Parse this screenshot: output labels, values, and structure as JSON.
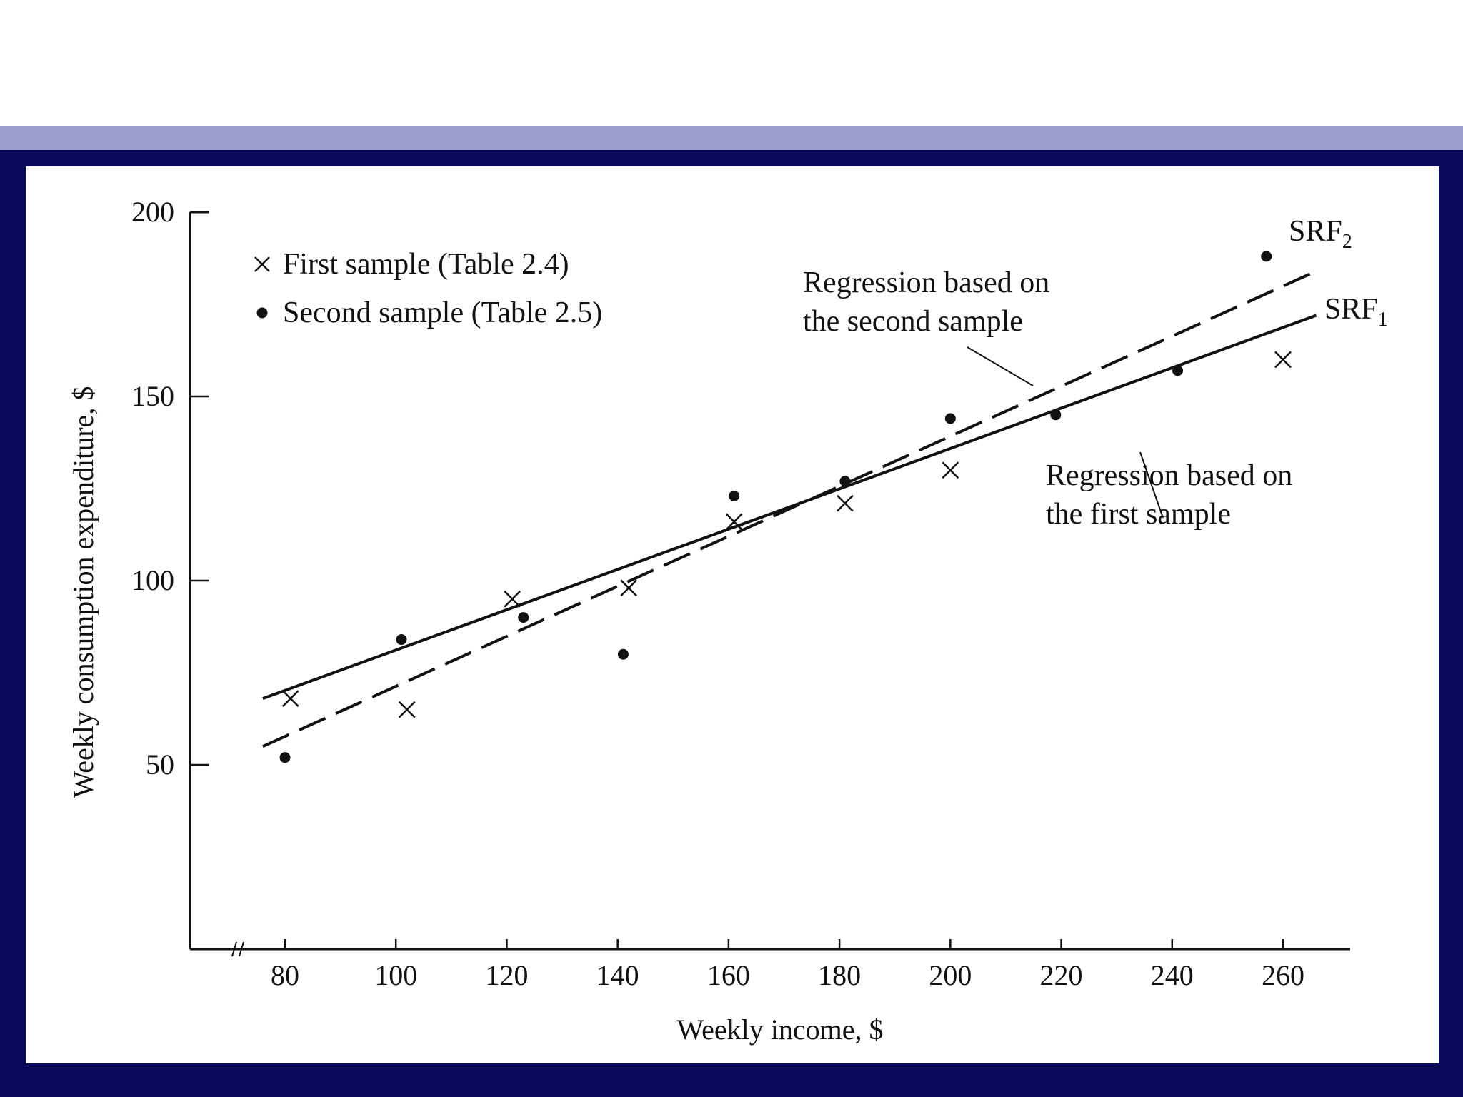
{
  "colors": {
    "accent_band": "#9a9ccb",
    "frame": "#0a0a5a",
    "ink": "#111111"
  },
  "chart_data": {
    "type": "scatter",
    "xlabel": "Weekly income, $",
    "ylabel": "Weekly consumption expenditure, $",
    "xlim": [
      62,
      272
    ],
    "ylim": [
      0,
      200
    ],
    "x_axis_break": true,
    "xticks": [
      80,
      100,
      120,
      140,
      160,
      180,
      200,
      220,
      240,
      260
    ],
    "yticks": [
      50,
      100,
      150,
      200
    ],
    "legend": {
      "placement": "top-left",
      "entries": [
        {
          "marker": "cross",
          "label": "First sample (Table 2.4)"
        },
        {
          "marker": "dot",
          "label": "Second sample (Table 2.5)"
        }
      ]
    },
    "series": [
      {
        "marker": "cross",
        "points": [
          [
            81,
            68
          ],
          [
            102,
            65
          ],
          [
            121,
            95
          ],
          [
            142,
            98
          ],
          [
            161,
            116
          ],
          [
            181,
            121
          ],
          [
            200,
            130
          ],
          [
            260,
            160
          ]
        ]
      },
      {
        "marker": "dot",
        "points": [
          [
            80,
            52
          ],
          [
            101,
            84
          ],
          [
            123,
            90
          ],
          [
            141,
            80
          ],
          [
            161,
            123
          ],
          [
            181,
            127
          ],
          [
            200,
            144
          ],
          [
            219,
            145
          ],
          [
            241,
            157
          ],
          [
            257,
            188
          ]
        ]
      }
    ],
    "lines": [
      {
        "style": "solid",
        "from": [
          76,
          68
        ],
        "to": [
          266,
          172
        ]
      },
      {
        "style": "dashed",
        "from": [
          76,
          55
        ],
        "to": [
          266,
          184
        ]
      }
    ],
    "line_labels": {
      "srf2": {
        "main": "SRF",
        "sub": "2"
      },
      "srf1": {
        "main": "SRF",
        "sub": "1"
      }
    },
    "annotations": [
      {
        "lines": [
          "Regression based on",
          "the second sample"
        ]
      },
      {
        "lines": [
          "Regression based on",
          "the first sample"
        ]
      }
    ]
  }
}
